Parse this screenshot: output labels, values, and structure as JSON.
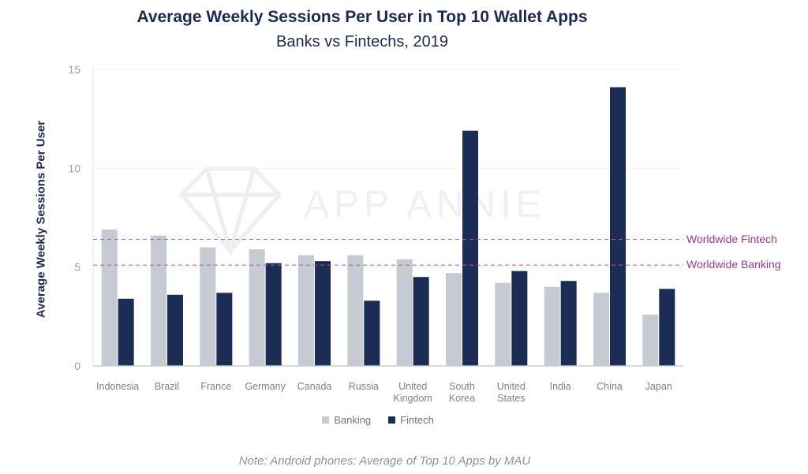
{
  "colors": {
    "banking": "#c5cad3",
    "fintech": "#1b2d55",
    "reference": "#b7559e",
    "text": "#1b2a52"
  },
  "watermark_text": "APP ANNIE",
  "chart_data": {
    "type": "bar",
    "title": "Average Weekly Sessions Per User in Top 10 Wallet Apps",
    "subtitle": "Banks vs Fintechs, 2019",
    "xlabel": "",
    "ylabel": "Average Weekly Sessions Per User",
    "ylim": [
      0,
      15
    ],
    "yticks": [
      0,
      5,
      10,
      15
    ],
    "grid": true,
    "legend_position": "bottom",
    "categories": [
      [
        "Indonesia"
      ],
      [
        "Brazil"
      ],
      [
        "France"
      ],
      [
        "Germany"
      ],
      [
        "Canada"
      ],
      [
        "Russia"
      ],
      [
        "United",
        "Kingdom"
      ],
      [
        "South",
        "Korea"
      ],
      [
        "United",
        "States"
      ],
      [
        "India"
      ],
      [
        "China"
      ],
      [
        "Japan"
      ]
    ],
    "series": [
      {
        "name": "Banking",
        "values": [
          6.9,
          6.6,
          6.0,
          5.9,
          5.6,
          5.6,
          5.4,
          4.7,
          4.2,
          4.0,
          3.7,
          2.6
        ]
      },
      {
        "name": "Fintech",
        "values": [
          3.4,
          3.6,
          3.7,
          5.2,
          5.3,
          3.3,
          4.5,
          11.9,
          4.8,
          4.3,
          14.1,
          3.9
        ]
      }
    ],
    "reference_lines": [
      {
        "label": "Worldwide Fintech",
        "value": 6.4
      },
      {
        "label": "Worldwide Banking",
        "value": 5.1
      }
    ],
    "note": "Note: Android phones: Average of Top 10 Apps by MAU"
  }
}
